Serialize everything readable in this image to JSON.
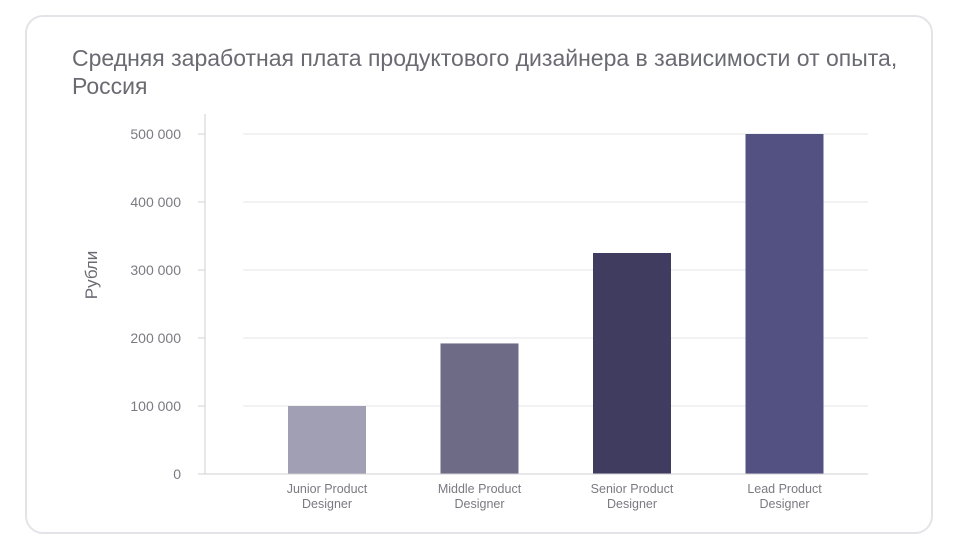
{
  "chart_data": {
    "type": "bar",
    "title": "Средняя заработная плата продуктового дизайнера в зависимости от опыта, Россия",
    "xlabel": "",
    "ylabel": "Рубли",
    "categories": [
      [
        "Junior Product",
        "Designer"
      ],
      [
        "Middle Product",
        "Designer"
      ],
      [
        "Senior Product",
        "Designer"
      ],
      [
        "Lead Product",
        "Designer"
      ]
    ],
    "values": [
      100000,
      192000,
      325000,
      500000
    ],
    "ylim": [
      0,
      500000
    ],
    "yticks": [
      0,
      100000,
      200000,
      300000,
      400000,
      500000
    ],
    "ytick_labels": [
      "0",
      "100 000",
      "200 000",
      "300 000",
      "400 000",
      "500 000"
    ],
    "bar_colors": [
      "#a09fb4",
      "#6d6b86",
      "#3f3c60",
      "#525181"
    ],
    "grid": true,
    "gridline_color": "#e6e6ea",
    "legend": "none"
  }
}
